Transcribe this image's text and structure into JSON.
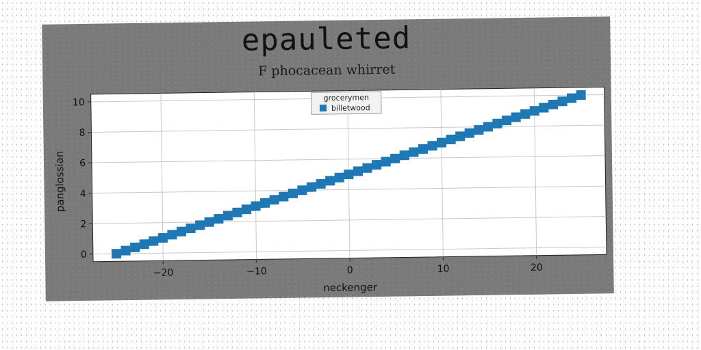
{
  "figure": {
    "title": "epauleted",
    "subtitle": "F phocacean whirret"
  },
  "chart_data": {
    "type": "scatter",
    "title": "epauleted",
    "subtitle": "F phocacean whirret",
    "xlabel": "neckenger",
    "ylabel": "panglossian",
    "xlim": [
      -27.5,
      27.5
    ],
    "ylim": [
      -0.5,
      10.5
    ],
    "xticks": [
      -20,
      -10,
      0,
      10,
      20
    ],
    "xtick_labels": [
      "−20",
      "−10",
      "0",
      "10",
      "20"
    ],
    "yticks": [
      0,
      2,
      4,
      6,
      8,
      10
    ],
    "ytick_labels": [
      "0",
      "2",
      "4",
      "6",
      "8",
      "10"
    ],
    "grid": true,
    "legend": {
      "title": "grocerymen",
      "placement": "top-center"
    },
    "series": [
      {
        "name": "billetwood",
        "color": "#1f77b4",
        "marker": "square",
        "x": [
          -25,
          -24,
          -23,
          -22,
          -21,
          -20,
          -19,
          -18,
          -17,
          -16,
          -15,
          -14,
          -13,
          -12,
          -11,
          -10,
          -9,
          -8,
          -7,
          -6,
          -5,
          -4,
          -3,
          -2,
          -1,
          0,
          1,
          2,
          3,
          4,
          5,
          6,
          7,
          8,
          9,
          10,
          11,
          12,
          13,
          14,
          15,
          16,
          17,
          18,
          19,
          20,
          21,
          22,
          23,
          24,
          25
        ],
        "y": [
          0,
          0.2,
          0.4,
          0.6,
          0.8,
          1.0,
          1.2,
          1.4,
          1.6,
          1.8,
          2.0,
          2.2,
          2.4,
          2.6,
          2.8,
          3.0,
          3.2,
          3.4,
          3.6,
          3.8,
          4.0,
          4.2,
          4.4,
          4.6,
          4.8,
          5.0,
          5.2,
          5.4,
          5.6,
          5.8,
          6.0,
          6.2,
          6.4,
          6.6,
          6.8,
          7.0,
          7.2,
          7.4,
          7.6,
          7.8,
          8.0,
          8.2,
          8.4,
          8.6,
          8.8,
          9.0,
          9.2,
          9.4,
          9.6,
          9.8,
          10.0
        ]
      }
    ]
  }
}
